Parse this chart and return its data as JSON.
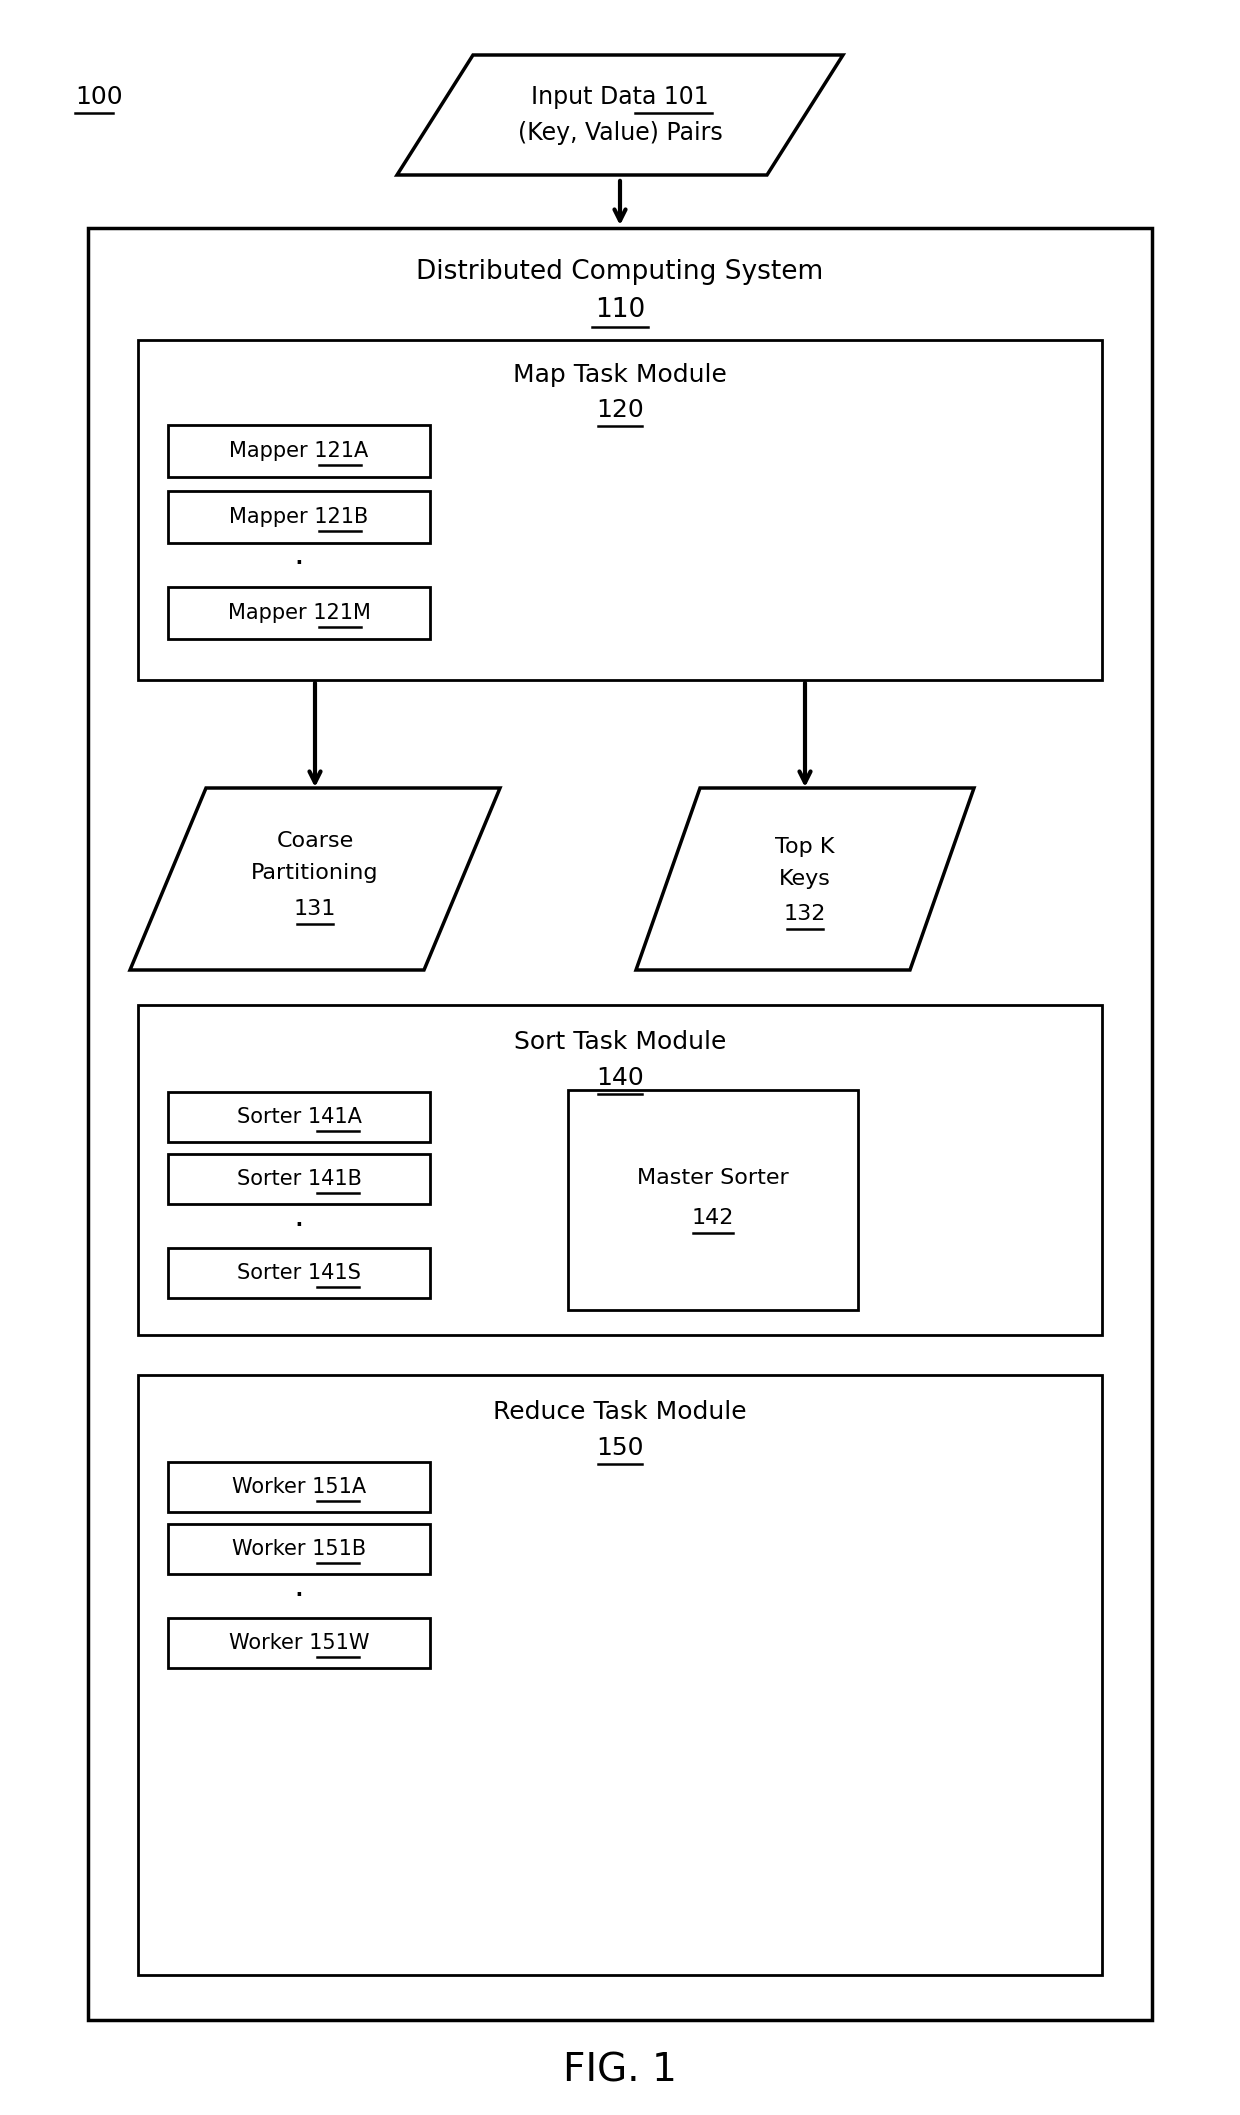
{
  "bg_color": "#ffffff",
  "line_color": "#000000",
  "fig_label": "FIG. 1",
  "label_100": "100",
  "input_parallelogram": {
    "text1": "Input Data 101",
    "text2": "(Key, Value) Pairs",
    "ref_underline": "101"
  },
  "outer_box": {
    "label": "Distributed Computing System",
    "ref": "110"
  },
  "map_module": {
    "label": "Map Task Module",
    "ref": "120",
    "mappers": [
      "Mapper 121A",
      "Mapper 121B",
      "Mapper 121M"
    ],
    "mapper_refs": [
      "121A",
      "121B",
      "121M"
    ]
  },
  "coarse_part": {
    "lines": [
      "Coarse",
      "Partitioning",
      "131"
    ]
  },
  "topk": {
    "lines": [
      "Top K",
      "Keys",
      "132"
    ]
  },
  "sort_module": {
    "label": "Sort Task Module",
    "ref": "140",
    "sorters": [
      "Sorter 141A",
      "Sorter 141B",
      "Sorter 141S"
    ],
    "sorter_refs": [
      "141A",
      "141B",
      "141S"
    ],
    "master_label": "Master Sorter",
    "master_ref": "142"
  },
  "reduce_module": {
    "label": "Reduce Task Module",
    "ref": "150",
    "workers": [
      "Worker 151A",
      "Worker 151B",
      "Worker 151W"
    ],
    "worker_refs": [
      "151A",
      "151B",
      "151W"
    ]
  }
}
